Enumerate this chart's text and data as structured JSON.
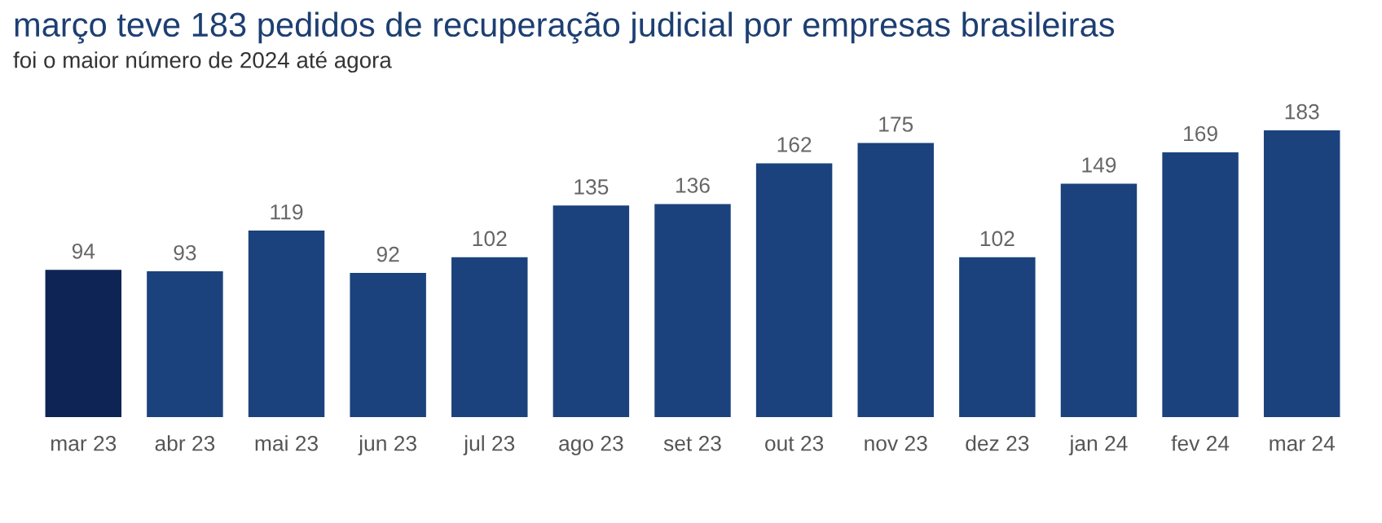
{
  "chart_data": {
    "type": "bar",
    "title": "março teve 183 pedidos de recuperação judicial por empresas brasileiras",
    "subtitle": "foi o maior número de 2024 até agora",
    "categories": [
      "mar 23",
      "abr 23",
      "mai 23",
      "jun 23",
      "jul 23",
      "ago 23",
      "set 23",
      "out 23",
      "nov 23",
      "dez 23",
      "jan 24",
      "fev 24",
      "mar 24"
    ],
    "values": [
      94,
      93,
      119,
      92,
      102,
      135,
      136,
      162,
      175,
      102,
      149,
      169,
      183
    ],
    "colors": [
      "#0e2454",
      "#1b427c",
      "#1b427c",
      "#1b427c",
      "#1b427c",
      "#1b427c",
      "#1b427c",
      "#1b427c",
      "#1b427c",
      "#1b427c",
      "#1b427c",
      "#1b427c",
      "#1b427c"
    ],
    "data_labels": true,
    "grid": false,
    "legend": false
  }
}
